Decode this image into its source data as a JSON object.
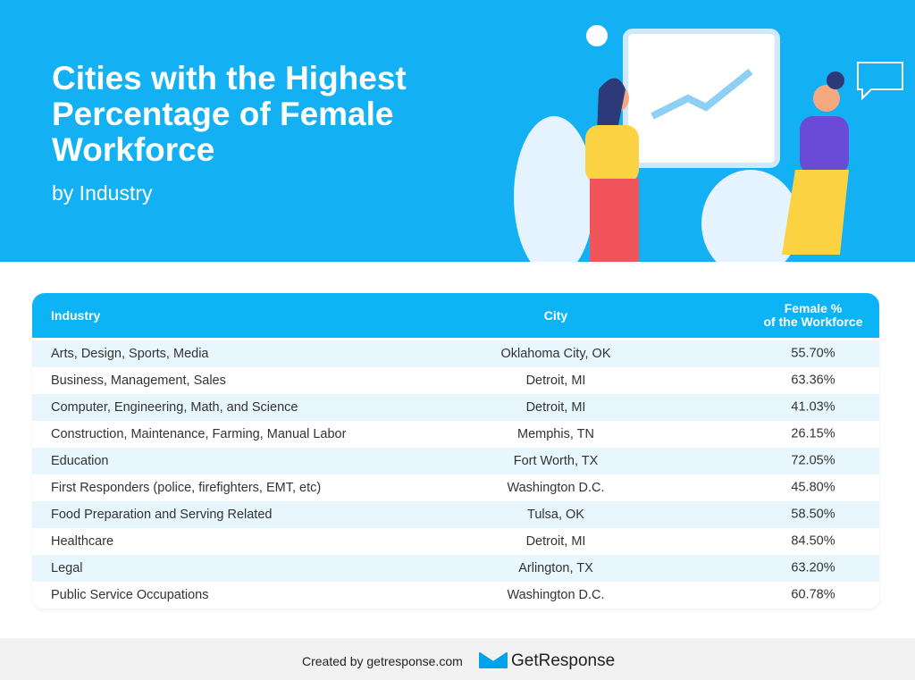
{
  "header": {
    "title": "Cities with the Highest Percentage of Female Workforce",
    "subtitle": "by Industry"
  },
  "table": {
    "headers": [
      "Industry",
      "City",
      [
        "Female %",
        "of the Workforce"
      ]
    ],
    "rows": [
      [
        "Arts, Design, Sports, Media",
        "Oklahoma City, OK",
        "55.70%"
      ],
      [
        "Business, Management, Sales",
        "Detroit, MI",
        "63.36%"
      ],
      [
        "Computer, Engineering, Math, and Science",
        "Detroit, MI",
        "41.03%"
      ],
      [
        "Construction, Maintenance, Farming, Manual Labor",
        "Memphis, TN",
        "26.15%"
      ],
      [
        "Education",
        "Fort Worth, TX",
        "72.05%"
      ],
      [
        "First Responders (police, firefighters, EMT, etc)",
        "Washington D.C.",
        "45.80%"
      ],
      [
        "Food Preparation and Serving Related",
        "Tulsa, OK",
        "58.50%"
      ],
      [
        "Healthcare",
        "Detroit, MI",
        "84.50%"
      ],
      [
        "Legal",
        "Arlington, TX",
        "63.20%"
      ],
      [
        "Public Service Occupations",
        "Washington D.C.",
        "60.78%"
      ]
    ]
  },
  "footer": {
    "credit": "Created by getresponse.com",
    "brand": "GetResponse"
  }
}
